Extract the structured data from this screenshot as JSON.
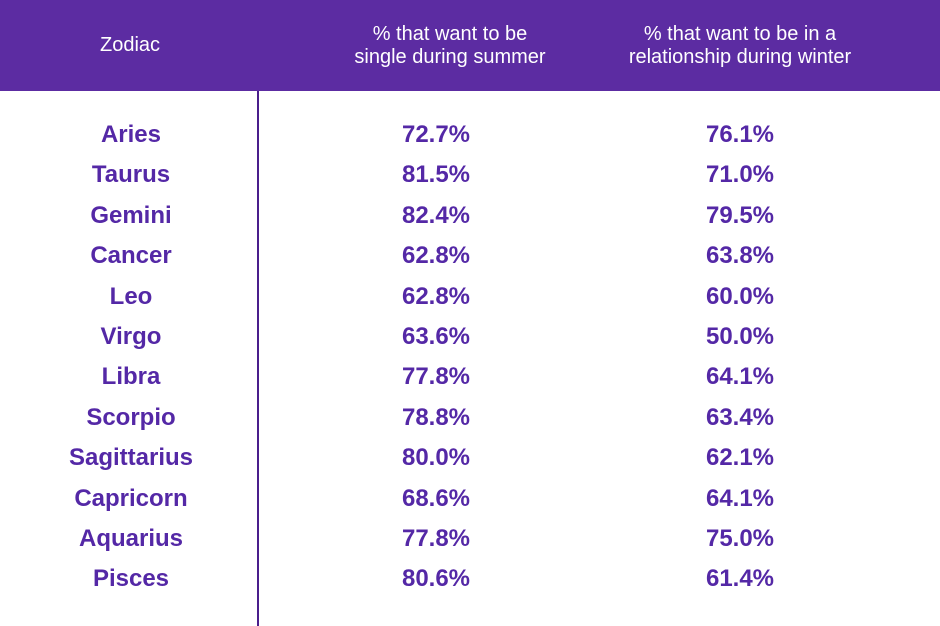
{
  "colors": {
    "header_bg": "#5c2ca2",
    "header_text": "#ffffff",
    "body_text": "#5428a6",
    "divider": "#4a1e8c"
  },
  "chart_data": {
    "type": "table",
    "columns": [
      "Zodiac",
      "% that want to be\nsingle during summer",
      "% that want to be in a\nrelationship during winter"
    ],
    "rows": [
      [
        "Aries",
        "72.7%",
        "76.1%"
      ],
      [
        "Taurus",
        "81.5%",
        "71.0%"
      ],
      [
        "Gemini",
        "82.4%",
        "79.5%"
      ],
      [
        "Cancer",
        "62.8%",
        "63.8%"
      ],
      [
        "Leo",
        "62.8%",
        "60.0%"
      ],
      [
        "Virgo",
        "63.6%",
        "50.0%"
      ],
      [
        "Libra",
        "77.8%",
        "64.1%"
      ],
      [
        "Scorpio",
        "78.8%",
        "63.4%"
      ],
      [
        "Sagittarius",
        "80.0%",
        "62.1%"
      ],
      [
        "Capricorn",
        "68.6%",
        "64.1%"
      ],
      [
        "Aquarius",
        "77.8%",
        "75.0%"
      ],
      [
        "Pisces",
        "80.6%",
        "61.4%"
      ]
    ]
  }
}
